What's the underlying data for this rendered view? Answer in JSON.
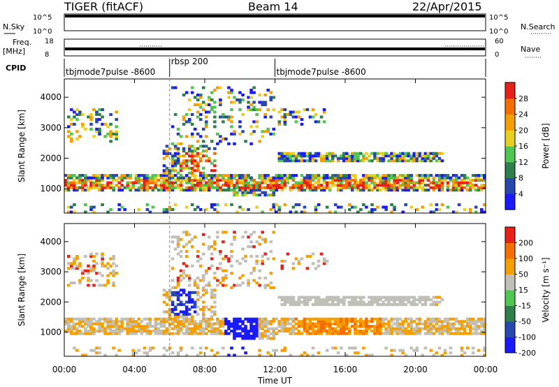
{
  "header": {
    "radar": "TIGER (fitACF)",
    "beam": "Beam 14",
    "date": "22/Apr/2015"
  },
  "strips": {
    "nsky_label": "N.Sky",
    "nsearch_label": "N.Search",
    "nsky_ticks": [
      "10^5",
      "10^0"
    ],
    "nsearch_ticks": [
      "10^5",
      "10^0"
    ],
    "freq_label_1": "Freq.",
    "freq_label_2": "[MHz]",
    "freq_ticks": [
      "18",
      "8"
    ],
    "nave_label": "Nave",
    "nave_ticks": [
      "60",
      "0"
    ],
    "cpid_label": "CPID",
    "cpid_segments": [
      {
        "label": "tbjmode7pulse  -8600",
        "start_h": 0,
        "end_h": 6
      },
      {
        "label": "rbsp 200",
        "start_h": 6,
        "end_h": 12
      },
      {
        "label": "tbjmode7pulse  -8600",
        "start_h": 12,
        "end_h": 24
      }
    ]
  },
  "chart_data": [
    {
      "type": "heatmap",
      "name": "power",
      "ylabel": "Slant Range [km]",
      "ylim": [
        200,
        4600
      ],
      "yticks": [
        1000,
        2000,
        3000,
        4000
      ],
      "xlim": [
        0,
        24
      ],
      "colorbar": {
        "label": "Power [dB]",
        "ticks": [
          "4",
          "8",
          "12",
          "16",
          "20",
          "24",
          "28"
        ],
        "colors": [
          "#1a1aff",
          "#2848b0",
          "#2e7f4a",
          "#4fc64f",
          "#e8d020",
          "#f5a000",
          "#f56e00",
          "#e8201a"
        ]
      }
    },
    {
      "type": "heatmap",
      "name": "velocity",
      "ylabel": "Slant Range [km]",
      "xlabel": "Time UT",
      "ylim": [
        200,
        4600
      ],
      "yticks": [
        1000,
        2000,
        3000,
        4000
      ],
      "xlim": [
        0,
        24
      ],
      "xticks": [
        "00:00",
        "04:00",
        "08:00",
        "12:00",
        "16:00",
        "20:00",
        "00:00"
      ],
      "colorbar": {
        "label": "Velocity [m s⁻¹]",
        "ticks": [
          "200",
          "100",
          "50",
          "15",
          "-15",
          "-50",
          "-100",
          "-200"
        ],
        "colors": [
          "#1a1aff",
          "#2848b0",
          "#2e7f4a",
          "#4fc64f",
          "#c0c0b8",
          "#f5a000",
          "#f56e00",
          "#e8201a"
        ]
      }
    }
  ]
}
